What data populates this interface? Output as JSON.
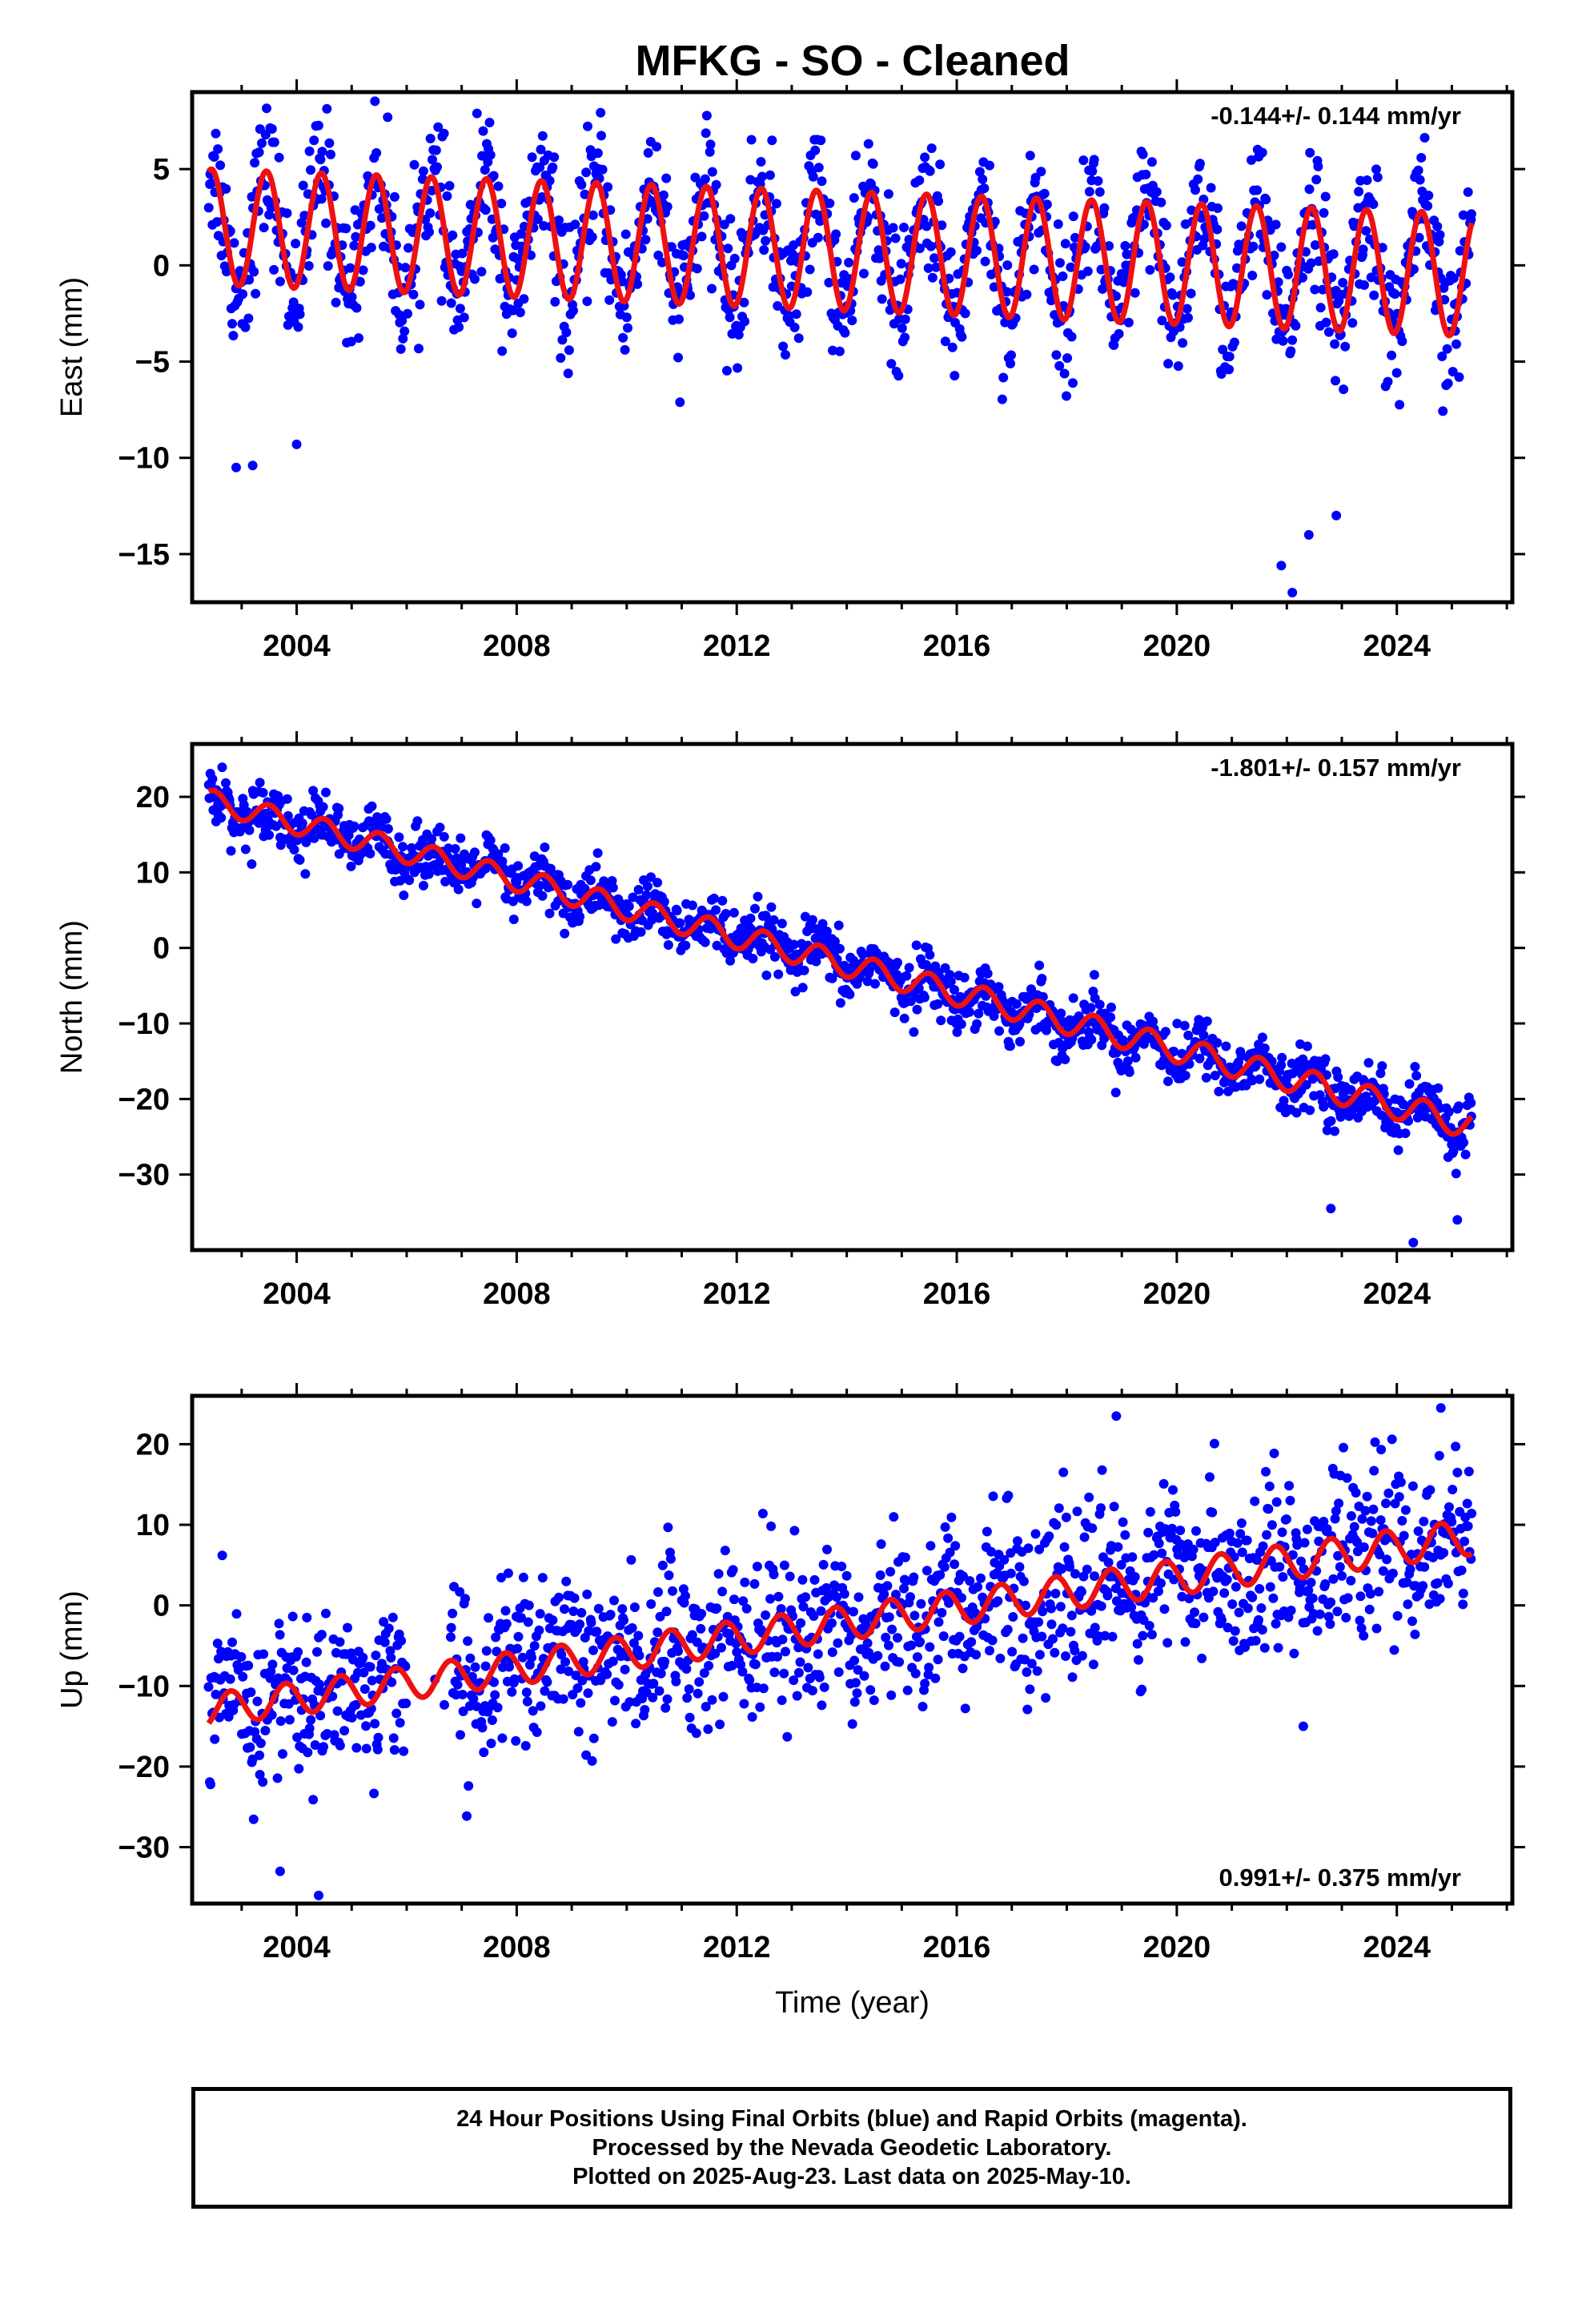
{
  "title": "MFKG  - SO - Cleaned",
  "footer": {
    "lines": [
      "24 Hour Positions Using Final Orbits (blue) and Rapid Orbits (magenta).",
      "Processed by the Nevada Geodetic Laboratory.",
      "Plotted on 2025-Aug-23. Last data on 2025-May-10."
    ]
  },
  "colors": {
    "final_orbits": "#0000ff",
    "model": "#ee1111",
    "axes": "#000000"
  },
  "chart_data": [
    {
      "type": "scatter",
      "component": "East",
      "ylabel": "East (mm)",
      "xlabel": "",
      "xlim": [
        2002.1,
        2026.1
      ],
      "ylim": [
        -17.5,
        9.0
      ],
      "xticks": [
        2004,
        2008,
        2012,
        2016,
        2020,
        2024
      ],
      "yticks": [
        5,
        0,
        -5,
        -10,
        -15
      ],
      "rate_label": "-0.144+/- 0.144 mm/yr",
      "rate_label_position": "top-right",
      "data_start": 2002.4,
      "data_end": 2025.36,
      "model": {
        "trend_start": 2.0,
        "trend_end": -0.5,
        "annual_amplitude_start": 3.0,
        "annual_amplitude_end": 3.2,
        "phase_peak_fraction": 0.45
      },
      "scatter_description": {
        "noise_mm": 1.8,
        "outliers": [
          [
            2002.9,
            -10.5
          ],
          [
            2003.2,
            -10.4
          ],
          [
            2004.0,
            -9.3
          ],
          [
            2021.9,
            -15.6
          ],
          [
            2022.1,
            -17.0
          ],
          [
            2022.4,
            -14.0
          ],
          [
            2022.9,
            -13.0
          ]
        ]
      }
    },
    {
      "type": "scatter",
      "component": "North",
      "ylabel": "North (mm)",
      "xlabel": "",
      "xlim": [
        2002.1,
        2026.1
      ],
      "ylim": [
        -40.0,
        27.0
      ],
      "xticks": [
        2004,
        2008,
        2012,
        2016,
        2020,
        2024
      ],
      "yticks": [
        20,
        10,
        0,
        -10,
        -20,
        -30
      ],
      "rate_label": "-1.801+/- 0.157 mm/yr",
      "rate_label_position": "top-right",
      "data_start": 2002.4,
      "data_end": 2025.36,
      "model": {
        "trend_start": 19.5,
        "trend_end": -23.5,
        "annual_amplitude_start": 1.5,
        "annual_amplitude_end": 1.8,
        "phase_peak_fraction": 0.5
      },
      "scatter_description": {
        "noise_mm": 1.9,
        "outliers": [
          [
            2022.8,
            -34.5
          ],
          [
            2024.3,
            -39.0
          ],
          [
            2025.1,
            -36.0
          ]
        ]
      }
    },
    {
      "type": "scatter",
      "component": "Up",
      "ylabel": "Up (mm)",
      "xlabel": "Time (year)",
      "xlim": [
        2002.1,
        2026.1
      ],
      "ylim": [
        -37.0,
        26.0
      ],
      "xticks": [
        2004,
        2008,
        2012,
        2016,
        2020,
        2024
      ],
      "yticks": [
        20,
        10,
        0,
        -10,
        -20,
        -30
      ],
      "rate_label": "0.991+/- 0.375 mm/yr",
      "rate_label_position": "bottom-right",
      "data_start": 2002.4,
      "data_end": 2025.36,
      "gap": [
        2006.0,
        2006.8
      ],
      "model": {
        "trend_start": -13.0,
        "trend_end": 8.5,
        "annual_amplitude_start": 2.0,
        "annual_amplitude_end": 2.2,
        "phase_peak_fraction": 0.8
      },
      "scatter_description": {
        "noise_mm": 5.0,
        "outliers": [
          [
            2003.7,
            -33.0
          ],
          [
            2004.4,
            -36.0
          ],
          [
            2018.9,
            23.5
          ],
          [
            2024.8,
            24.5
          ],
          [
            2022.3,
            -15.0
          ]
        ]
      }
    }
  ]
}
